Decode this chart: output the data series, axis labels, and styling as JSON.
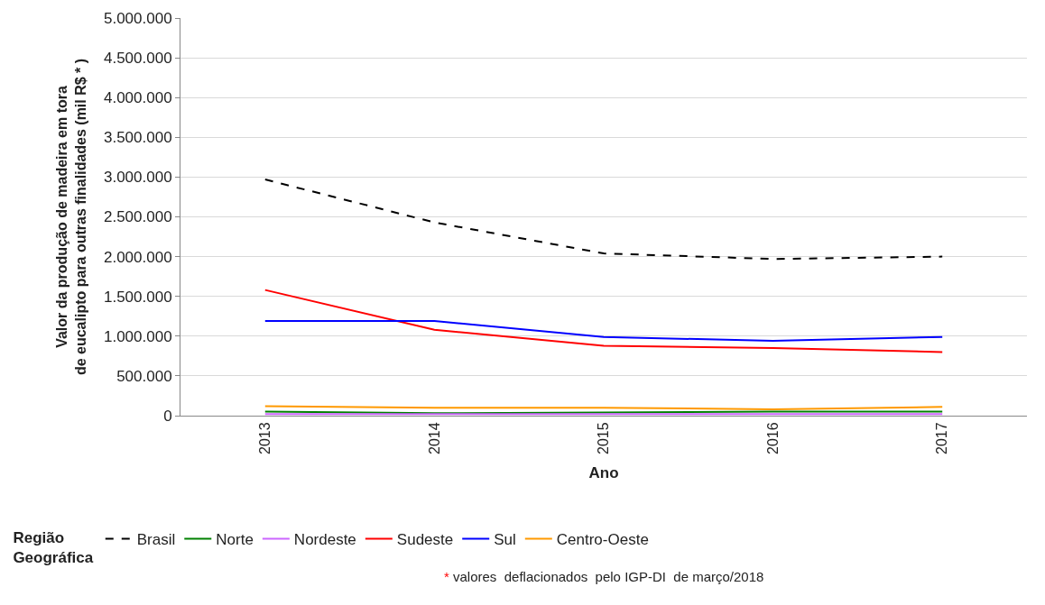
{
  "chart_data": {
    "type": "line",
    "xlabel": "Ano",
    "ylabel": "Valor da produção de madeira em tora\nde eucalipto para outras finalidades (mil R$ * )",
    "legend_title": "Região\nGeográfica",
    "annotations": [
      "* valores  deflacionados  pelo IGP-DI  de março/2018"
    ],
    "categories": [
      "2013",
      "2014",
      "2015",
      "2016",
      "2017"
    ],
    "ylim": [
      0,
      5000000
    ],
    "yticks": [
      {
        "value": 0,
        "label": "0"
      },
      {
        "value": 500000,
        "label": "500.000"
      },
      {
        "value": 1000000,
        "label": "1.000.000"
      },
      {
        "value": 1500000,
        "label": "1.500.000"
      },
      {
        "value": 2000000,
        "label": "2.000.000"
      },
      {
        "value": 2500000,
        "label": "2.500.000"
      },
      {
        "value": 3000000,
        "label": "3.000.000"
      },
      {
        "value": 3500000,
        "label": "3.500.000"
      },
      {
        "value": 4000000,
        "label": "4.000.000"
      },
      {
        "value": 4500000,
        "label": "4.500.000"
      },
      {
        "value": 5000000,
        "label": "5.000.000"
      }
    ],
    "grid": "y",
    "legend": "bottom",
    "marker": "none",
    "series": [
      {
        "name": "Brasil",
        "color": "#000000",
        "line_style": "dashed",
        "values": [
          2970000,
          2430000,
          2040000,
          1970000,
          2000000
        ]
      },
      {
        "name": "Norte",
        "color": "#008000",
        "values": [
          50000,
          30000,
          40000,
          50000,
          50000
        ]
      },
      {
        "name": "Nordeste",
        "color": "#cc66ff",
        "values": [
          20000,
          20000,
          20000,
          20000,
          20000
        ]
      },
      {
        "name": "Sudeste",
        "color": "#ff0000",
        "values": [
          1580000,
          1080000,
          880000,
          850000,
          800000
        ]
      },
      {
        "name": "Sul",
        "color": "#0000ff",
        "values": [
          1190000,
          1190000,
          990000,
          940000,
          990000
        ]
      },
      {
        "name": "Centro-Oeste",
        "color": "#ff9900",
        "values": [
          120000,
          100000,
          100000,
          80000,
          110000
        ]
      }
    ]
  }
}
